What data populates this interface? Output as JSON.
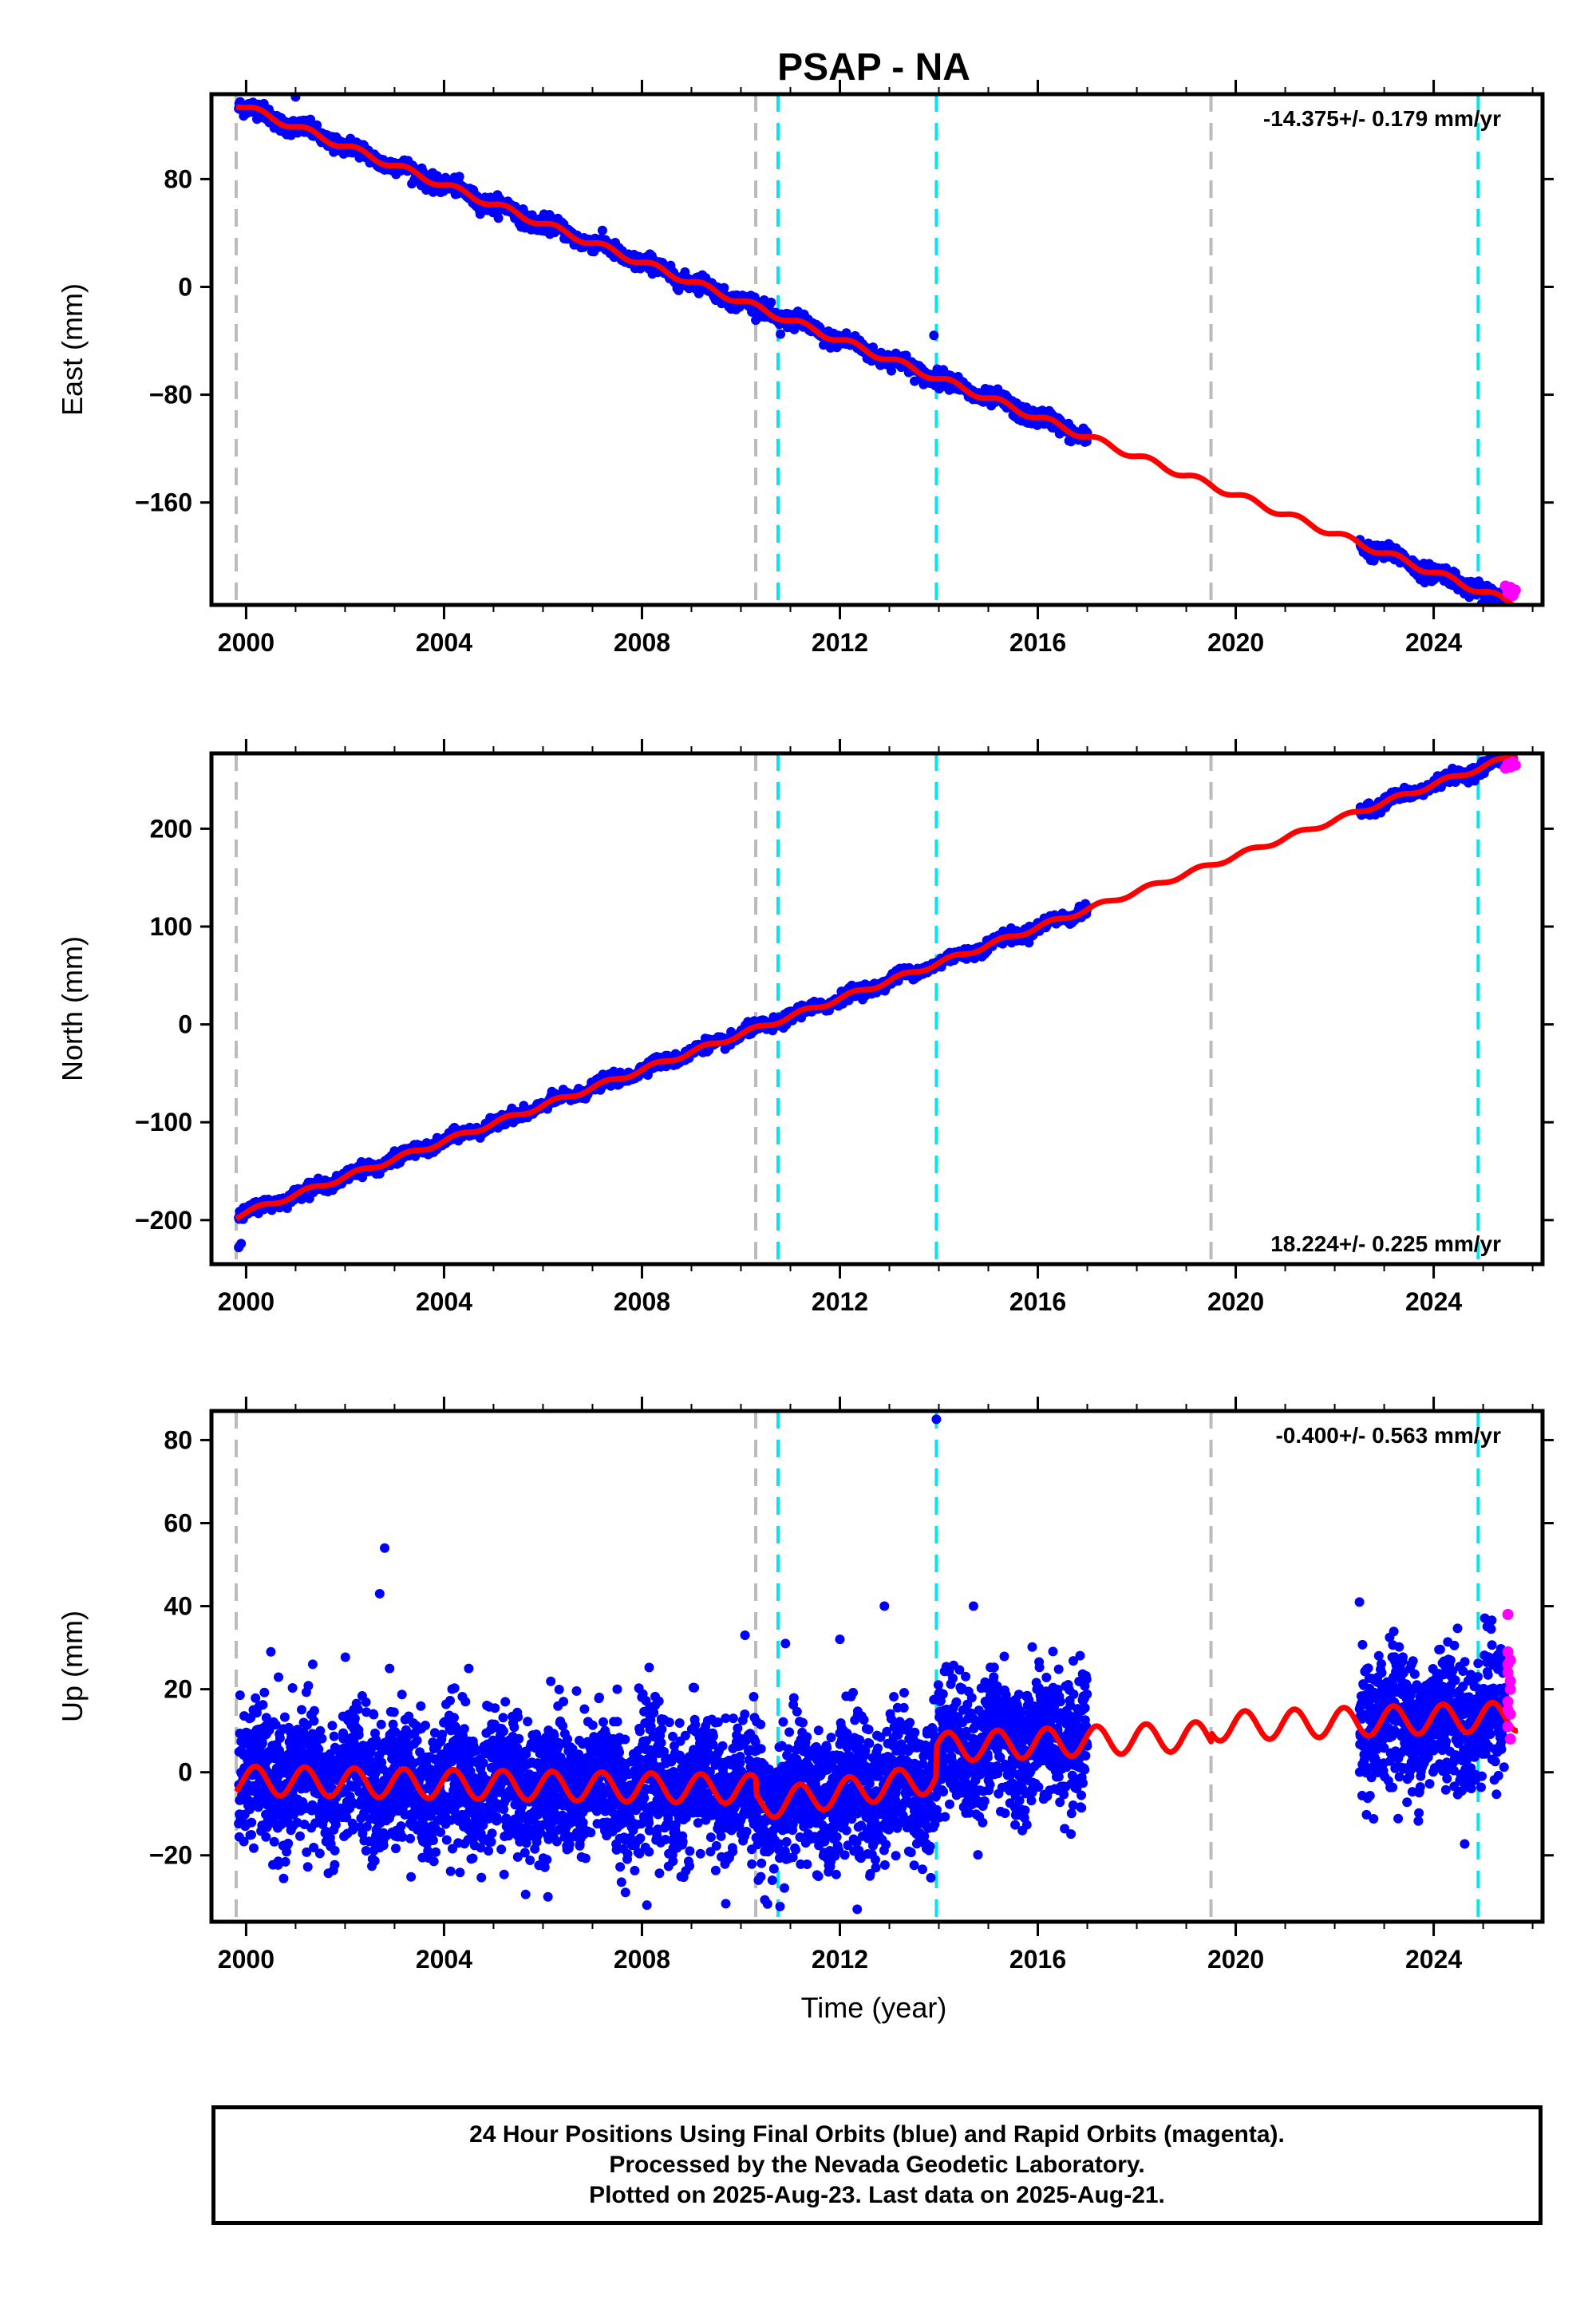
{
  "chart_data": {
    "type": "scatter",
    "title": "PSAP - NA",
    "xlabel": "Time (year)",
    "xlim": [
      1999.3,
      2026.2
    ],
    "xticks": [
      2000,
      2004,
      2008,
      2012,
      2016,
      2020,
      2024
    ],
    "vlines_gray": [
      1999.8,
      2010.3,
      2019.5
    ],
    "vlines_cyan": [
      2010.75,
      2013.95,
      2024.9
    ],
    "data_gap": [
      2017.0,
      2022.5
    ],
    "series_colors": {
      "final": "#0000ff",
      "rapid": "#ff00ff",
      "model": "#ff0000"
    },
    "panels": [
      {
        "id": "east",
        "ylabel": "East (mm)",
        "ylim": [
          -236,
          143
        ],
        "yticks": [
          80,
          0,
          -80,
          -160
        ],
        "rate_label": "-14.375+/- 0.179 mm/yr",
        "rate_position": "top-right",
        "trend": {
          "x0": 1999.8,
          "y0": 136,
          "slope": -14.375,
          "seasonal_amp": 2.5
        },
        "scatter_noise": 3,
        "outliers": [
          [
            2001.0,
            141
          ],
          [
            2010.8,
            -35
          ],
          [
            2013.9,
            -36
          ]
        ],
        "rapid_points": [
          [
            2025.45,
            -222
          ],
          [
            2025.5,
            -227
          ],
          [
            2025.55,
            -223
          ],
          [
            2025.6,
            -229
          ],
          [
            2025.65,
            -225
          ]
        ]
      },
      {
        "id": "north",
        "ylabel": "North (mm)",
        "ylim": [
          -245,
          277
        ],
        "yticks": [
          200,
          100,
          0,
          -100,
          -200
        ],
        "rate_label": "18.224+/- 0.225 mm/yr",
        "rate_position": "bottom-right",
        "trend": {
          "x0": 1999.8,
          "y0": -196,
          "slope": 18.224,
          "seasonal_amp": 2.5
        },
        "scatter_noise": 3,
        "outliers": [
          [
            1999.85,
            -228
          ],
          [
            1999.9,
            -224
          ]
        ],
        "rapid_points": [
          [
            2025.45,
            262
          ],
          [
            2025.5,
            266
          ],
          [
            2025.55,
            263
          ],
          [
            2025.6,
            268
          ],
          [
            2025.65,
            265
          ]
        ]
      },
      {
        "id": "up",
        "ylabel": "Up (mm)",
        "ylim": [
          -36,
          87
        ],
        "yticks": [
          80,
          60,
          40,
          20,
          0,
          -20
        ],
        "rate_label": "-0.400+/- 0.563 mm/yr",
        "rate_position": "top-right",
        "segments": [
          {
            "from": 1999.8,
            "to": 2010.3,
            "offset": -2,
            "slope": -0.2
          },
          {
            "from": 2010.3,
            "to": 2013.95,
            "offset": -8,
            "slope": 1.8
          },
          {
            "from": 2013.95,
            "to": 2019.5,
            "offset": 6,
            "slope": 0.5
          },
          {
            "from": 2019.5,
            "to": 2026.0,
            "offset": 11,
            "slope": 0.4
          }
        ],
        "seasonal_amp": 3.5,
        "scatter_noise": 8,
        "outliers": [
          [
            2002.8,
            54
          ],
          [
            2002.7,
            43
          ],
          [
            2013.95,
            85
          ],
          [
            2012.9,
            40
          ],
          [
            2014.7,
            40
          ],
          [
            2022.5,
            41
          ],
          [
            2008.1,
            -32
          ],
          [
            2012.0,
            32
          ],
          [
            2006.1,
            -30
          ],
          [
            2012.35,
            -33
          ],
          [
            2010.9,
            31
          ],
          [
            2002.9,
            25
          ],
          [
            2004.5,
            25
          ],
          [
            2007.5,
            20
          ],
          [
            2000.5,
            29
          ]
        ],
        "rapid_points": [
          [
            2025.5,
            38
          ],
          [
            2025.5,
            29
          ],
          [
            2025.55,
            27
          ],
          [
            2025.5,
            24
          ],
          [
            2025.55,
            20
          ],
          [
            2025.5,
            17
          ],
          [
            2025.55,
            14
          ],
          [
            2025.5,
            11
          ],
          [
            2025.55,
            8
          ],
          [
            2025.5,
            26
          ],
          [
            2025.55,
            22
          ],
          [
            2025.5,
            15
          ]
        ]
      }
    ]
  },
  "footer": {
    "line1": "24 Hour Positions Using Final Orbits (blue) and Rapid Orbits (magenta).",
    "line2": "Processed by the Nevada Geodetic Laboratory.",
    "line3": "Plotted on 2025-Aug-23. Last data on 2025-Aug-21."
  }
}
